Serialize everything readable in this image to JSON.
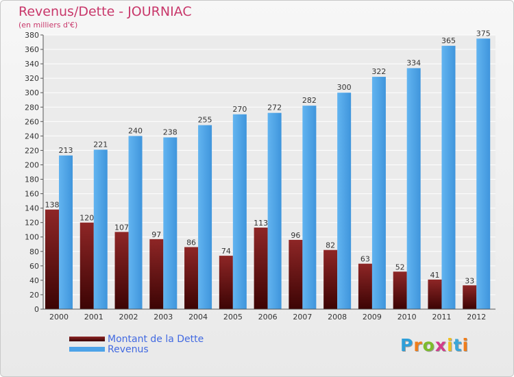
{
  "chart_data": {
    "type": "bar",
    "title": "Revenus/Dette - JOURNIAC",
    "subtitle": "(en milliers d'€)",
    "categories": [
      "2000",
      "2001",
      "2002",
      "2003",
      "2004",
      "2005",
      "2006",
      "2007",
      "2008",
      "2009",
      "2010",
      "2011",
      "2012"
    ],
    "series": [
      {
        "name": "Montant de la Dette",
        "color": "#7a1616",
        "values": [
          138,
          120,
          107,
          97,
          86,
          74,
          113,
          96,
          82,
          63,
          52,
          41,
          33
        ]
      },
      {
        "name": "Revenus",
        "color": "#4da3e8",
        "values": [
          213,
          221,
          240,
          238,
          255,
          270,
          272,
          282,
          300,
          322,
          334,
          365,
          375
        ]
      }
    ],
    "ylim": [
      0,
      380
    ],
    "ytick_step": 20,
    "grid": true,
    "legend": "bottom-left"
  },
  "branding": {
    "logo_letters": [
      "P",
      "r",
      "o",
      "x",
      "i",
      "t",
      "i"
    ],
    "logo_colors": [
      "#2e9fd8",
      "#f07d1a",
      "#7cbc2c",
      "#d23c8c",
      "#f0c020",
      "#3aa6d8",
      "#f07d1a"
    ]
  }
}
